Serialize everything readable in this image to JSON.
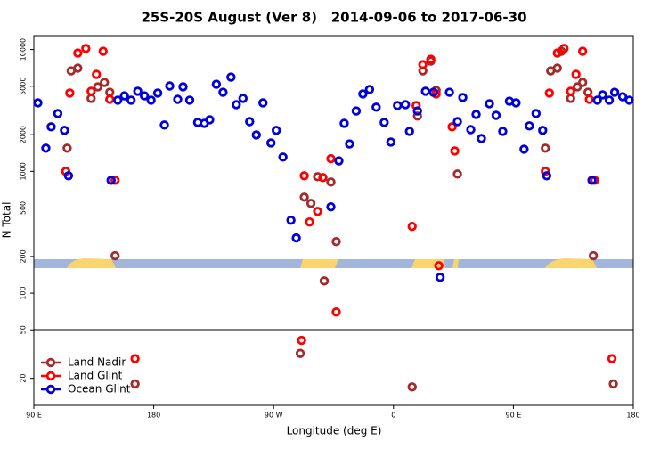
{
  "chart_data": {
    "type": "scatter",
    "title": "25S-20S August (Ver 8)   2014-09-06 to 2017-06-30",
    "x_label": "Longitude (deg E)",
    "y_label": "N Total",
    "xlim": [
      90,
      540
    ],
    "xticks": [
      {
        "value": 90,
        "label": "90 E"
      },
      180,
      {
        "value": 270,
        "label": "90 W"
      },
      {
        "value": 360,
        "label": "0"
      },
      {
        "value": 450,
        "label": "90 E"
      },
      {
        "value": 540,
        "label": "180"
      }
    ],
    "ylim": [
      12,
      13000
    ],
    "yscale": "log",
    "yticks": [
      20,
      50,
      100,
      200,
      500,
      1000,
      2000,
      5000,
      10000
    ],
    "legend": "lower left",
    "series": [
      {
        "name": "Land Nadir",
        "color": "#a52a2a",
        "x": [
          115,
          118,
          123,
          133,
          138,
          143,
          147,
          151,
          166,
          290,
          293,
          298,
          303,
          308,
          313,
          317,
          374,
          378,
          382,
          388,
          392,
          408,
          474,
          478,
          483,
          486,
          493,
          498,
          502,
          506,
          510,
          525
        ],
        "values": [
          1550,
          6680,
          7030,
          3970,
          4940,
          5370,
          4460,
          203,
          18,
          32,
          614,
          546,
          904,
          126,
          817,
          265,
          17,
          2840,
          6680,
          8040,
          4620,
          951,
          1550,
          6680,
          7030,
          9670,
          3970,
          4940,
          5370,
          4460,
          203,
          18
        ]
      },
      {
        "name": "Land Glint",
        "color": "#ff0000",
        "x": [
          114,
          117,
          123,
          129,
          133,
          137,
          142,
          147,
          151,
          166,
          291,
          293,
          297,
          303,
          307,
          313,
          317,
          374,
          377,
          382,
          388,
          392,
          394,
          404,
          406,
          474,
          477,
          483,
          488,
          493,
          497,
          502,
          507,
          511,
          524
        ],
        "values": [
          1000,
          4390,
          9350,
          10200,
          4540,
          6250,
          9670,
          3900,
          845,
          29,
          41,
          920,
          384,
          469,
          889,
          1270,
          70,
          353,
          3470,
          7510,
          8310,
          4320,
          168,
          2320,
          1470,
          1000,
          4390,
          9350,
          10200,
          4540,
          6250,
          9670,
          3900,
          845,
          29
        ]
      },
      {
        "name": "Ocean Glint",
        "color": "#0000dd",
        "x": [
          93,
          99,
          103,
          108,
          113,
          116,
          148,
          153,
          158,
          163,
          168,
          173,
          178,
          183,
          188,
          192,
          198,
          202,
          207,
          213,
          218,
          222,
          227,
          232,
          238,
          242,
          247,
          252,
          257,
          262,
          268,
          272,
          277,
          283,
          287,
          313,
          319,
          323,
          327,
          332,
          337,
          342,
          347,
          353,
          358,
          363,
          369,
          372,
          378,
          384,
          390,
          395,
          402,
          408,
          412,
          418,
          422,
          426,
          432,
          437,
          442,
          447,
          452,
          458,
          462,
          467,
          472,
          475,
          509,
          513,
          517,
          522,
          526,
          532,
          537
        ],
        "values": [
          3650,
          1550,
          2320,
          2980,
          2170,
          920,
          845,
          3840,
          4170,
          3840,
          4540,
          4170,
          3840,
          4390,
          2400,
          5020,
          3900,
          4940,
          3840,
          2520,
          2480,
          2650,
          5190,
          4460,
          5940,
          3530,
          3970,
          2560,
          1990,
          3650,
          1710,
          2170,
          1310,
          397,
          284,
          511,
          1220,
          2480,
          1680,
          3130,
          4320,
          4700,
          3360,
          2520,
          1740,
          3470,
          3530,
          2130,
          3130,
          4540,
          4460,
          135,
          4460,
          2560,
          4040,
          2200,
          2930,
          1860,
          3590,
          2880,
          2130,
          3770,
          3650,
          1520,
          2360,
          2980,
          2170,
          920,
          845,
          3840,
          4250,
          3840,
          4460,
          4100,
          3840
        ]
      }
    ]
  }
}
